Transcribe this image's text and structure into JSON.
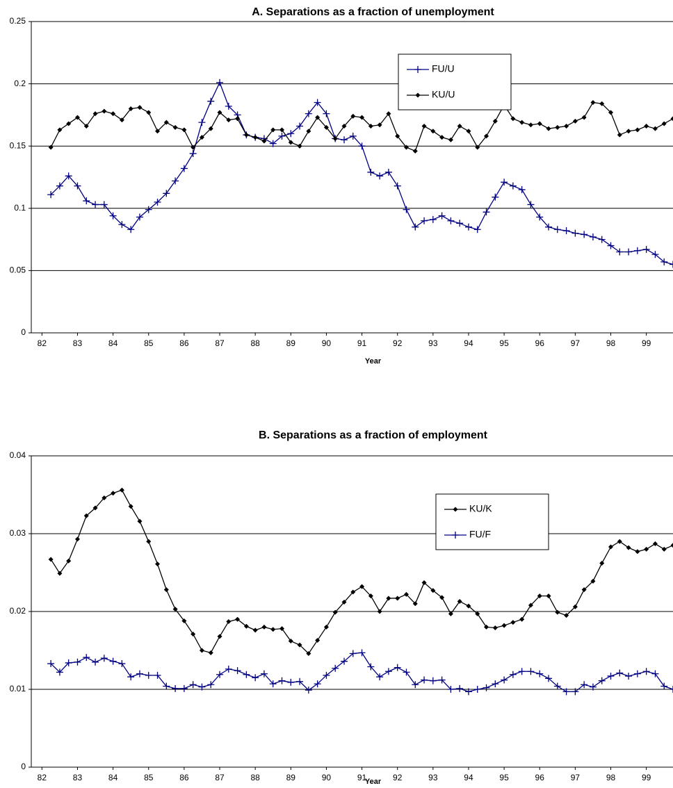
{
  "chart_data": [
    {
      "type": "line",
      "title": "A. Separations as a fraction of unemployment",
      "xlabel": "Year",
      "x": [
        82.25,
        82.5,
        82.75,
        83,
        83.25,
        83.5,
        83.75,
        84,
        84.25,
        84.5,
        84.75,
        85,
        85.25,
        85.5,
        85.75,
        86,
        86.25,
        86.5,
        86.75,
        87,
        87.25,
        87.5,
        87.75,
        88,
        88.25,
        88.5,
        88.75,
        89,
        89.25,
        89.5,
        89.75,
        90,
        90.25,
        90.5,
        90.75,
        91,
        91.25,
        91.5,
        91.75,
        92,
        92.25,
        92.5,
        92.75,
        93,
        93.25,
        93.5,
        93.75,
        94,
        94.25,
        94.5,
        94.75,
        95,
        95.25,
        95.5,
        95.75,
        96,
        96.25,
        96.5,
        96.75,
        97,
        97.25,
        97.5,
        97.75,
        98,
        98.25,
        98.5,
        98.75,
        99,
        99.25,
        99.5,
        99.75
      ],
      "series": [
        {
          "name": "FU/U",
          "color": "#000080",
          "marker": "plus",
          "values": [
            0.111,
            0.118,
            0.126,
            0.118,
            0.106,
            0.103,
            0.103,
            0.094,
            0.087,
            0.083,
            0.093,
            0.099,
            0.105,
            0.112,
            0.122,
            0.132,
            0.144,
            0.169,
            0.186,
            0.201,
            0.182,
            0.175,
            0.159,
            0.157,
            0.156,
            0.152,
            0.158,
            0.16,
            0.166,
            0.176,
            0.185,
            0.176,
            0.156,
            0.155,
            0.158,
            0.15,
            0.129,
            0.126,
            0.129,
            0.118,
            0.099,
            0.085,
            0.09,
            0.091,
            0.094,
            0.09,
            0.088,
            0.085,
            0.083,
            0.097,
            0.109,
            0.121,
            0.118,
            0.115,
            0.103,
            0.093,
            0.085,
            0.083,
            0.082,
            0.08,
            0.079,
            0.077,
            0.075,
            0.07,
            0.065,
            0.065,
            0.066,
            0.067,
            0.063,
            0.057,
            0.055
          ]
        },
        {
          "name": "KU/U",
          "color": "#000000",
          "marker": "diamond",
          "values": [
            0.149,
            0.163,
            0.168,
            0.173,
            0.166,
            0.176,
            0.178,
            0.176,
            0.171,
            0.18,
            0.181,
            0.177,
            0.162,
            0.169,
            0.165,
            0.163,
            0.149,
            0.157,
            0.164,
            0.177,
            0.171,
            0.172,
            0.159,
            0.157,
            0.154,
            0.163,
            0.163,
            0.153,
            0.15,
            0.162,
            0.173,
            0.165,
            0.156,
            0.166,
            0.174,
            0.173,
            0.166,
            0.167,
            0.176,
            0.158,
            0.149,
            0.146,
            0.166,
            0.162,
            0.157,
            0.155,
            0.166,
            0.162,
            0.149,
            0.158,
            0.17,
            0.183,
            0.172,
            0.169,
            0.167,
            0.168,
            0.164,
            0.165,
            0.166,
            0.17,
            0.173,
            0.185,
            0.184,
            0.177,
            0.159,
            0.162,
            0.163,
            0.166,
            0.164,
            0.168,
            0.172
          ]
        }
      ],
      "xlim": [
        81.7,
        99.75
      ],
      "xticks": [
        82,
        83,
        84,
        85,
        86,
        87,
        88,
        89,
        90,
        91,
        92,
        93,
        94,
        95,
        96,
        97,
        98,
        99
      ],
      "ylim": [
        0,
        0.25
      ],
      "yticks": [
        0,
        0.05,
        0.1,
        0.15,
        0.2,
        0.25
      ],
      "grid": true,
      "legend": "upper right"
    },
    {
      "type": "line",
      "title": "B. Separations as a fraction of employment",
      "xlabel": "Year",
      "x": [
        82.25,
        82.5,
        82.75,
        83,
        83.25,
        83.5,
        83.75,
        84,
        84.25,
        84.5,
        84.75,
        85,
        85.25,
        85.5,
        85.75,
        86,
        86.25,
        86.5,
        86.75,
        87,
        87.25,
        87.5,
        87.75,
        88,
        88.25,
        88.5,
        88.75,
        89,
        89.25,
        89.5,
        89.75,
        90,
        90.25,
        90.5,
        90.75,
        91,
        91.25,
        91.5,
        91.75,
        92,
        92.25,
        92.5,
        92.75,
        93,
        93.25,
        93.5,
        93.75,
        94,
        94.25,
        94.5,
        94.75,
        95,
        95.25,
        95.5,
        95.75,
        96,
        96.25,
        96.5,
        96.75,
        97,
        97.25,
        97.5,
        97.75,
        98,
        98.25,
        98.5,
        98.75,
        99,
        99.25,
        99.5,
        99.75
      ],
      "series": [
        {
          "name": "KU/K",
          "color": "#000000",
          "marker": "diamond",
          "values": [
            0.0267,
            0.0249,
            0.0265,
            0.0293,
            0.0323,
            0.0333,
            0.0346,
            0.0352,
            0.0356,
            0.0335,
            0.0316,
            0.029,
            0.0261,
            0.0228,
            0.0203,
            0.0188,
            0.0171,
            0.015,
            0.0147,
            0.0168,
            0.0187,
            0.019,
            0.0181,
            0.0176,
            0.018,
            0.0177,
            0.0178,
            0.0162,
            0.0157,
            0.0146,
            0.0163,
            0.018,
            0.0199,
            0.0212,
            0.0225,
            0.0232,
            0.022,
            0.02,
            0.0217,
            0.0217,
            0.0222,
            0.021,
            0.0237,
            0.0227,
            0.0218,
            0.0197,
            0.0213,
            0.0207,
            0.0197,
            0.018,
            0.0179,
            0.0182,
            0.0186,
            0.019,
            0.0208,
            0.022,
            0.022,
            0.0199,
            0.0195,
            0.0206,
            0.0228,
            0.0239,
            0.0262,
            0.0283,
            0.029,
            0.0282,
            0.0277,
            0.028,
            0.0287,
            0.028,
            0.0285
          ]
        },
        {
          "name": "FU/F",
          "color": "#000080",
          "marker": "plus",
          "values": [
            0.0133,
            0.0122,
            0.0134,
            0.0135,
            0.0141,
            0.0135,
            0.014,
            0.0136,
            0.0133,
            0.0116,
            0.012,
            0.0118,
            0.0118,
            0.0104,
            0.0101,
            0.0101,
            0.0106,
            0.0103,
            0.0106,
            0.0119,
            0.0126,
            0.0124,
            0.0119,
            0.0115,
            0.012,
            0.0107,
            0.0111,
            0.0109,
            0.011,
            0.0099,
            0.0107,
            0.0118,
            0.0127,
            0.0136,
            0.0146,
            0.0147,
            0.0129,
            0.0116,
            0.0123,
            0.0128,
            0.0122,
            0.0106,
            0.0112,
            0.0111,
            0.0112,
            0.01,
            0.0101,
            0.0097,
            0.01,
            0.0102,
            0.0107,
            0.0112,
            0.0119,
            0.0123,
            0.0123,
            0.012,
            0.0114,
            0.0104,
            0.0097,
            0.0097,
            0.0106,
            0.0103,
            0.0111,
            0.0117,
            0.0121,
            0.0117,
            0.012,
            0.0123,
            0.012,
            0.0104,
            0.01
          ]
        }
      ],
      "xlim": [
        81.7,
        99.75
      ],
      "xticks": [
        82,
        83,
        84,
        85,
        86,
        87,
        88,
        89,
        90,
        91,
        92,
        93,
        94,
        95,
        96,
        97,
        98,
        99
      ],
      "ylim": [
        0,
        0.04
      ],
      "yticks": [
        0,
        0.01,
        0.02,
        0.03,
        0.04
      ],
      "grid": true,
      "legend": "upper right"
    }
  ]
}
